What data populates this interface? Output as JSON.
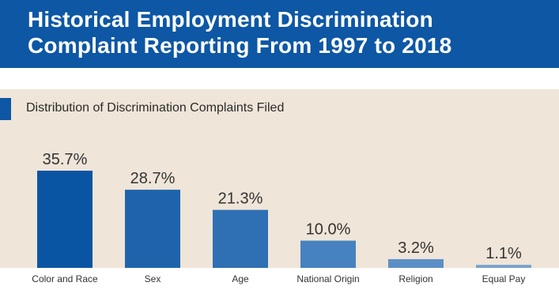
{
  "header": {
    "title_line1": "Historical Employment Discrimination",
    "title_line2": "Complaint Reporting From 1997 to 2018"
  },
  "colors": {
    "header_bg": "#0d57a5",
    "panel_bg": "#efe5d8",
    "bar_colors": [
      "#0a55a3",
      "#1e64ad",
      "#2f6fb4",
      "#4682bf",
      "#5a90c6",
      "#76a3cf"
    ]
  },
  "chart_data": {
    "type": "bar",
    "title": "Distribution of Discrimination Complaints Filed",
    "categories": [
      "Color and Race",
      "Sex",
      "Age",
      "National Origin",
      "Religion",
      "Equal Pay"
    ],
    "values": [
      35.7,
      28.7,
      21.3,
      10.0,
      3.2,
      1.1
    ],
    "data_labels": [
      "35.7%",
      "28.7%",
      "21.3%",
      "10.0%",
      "3.2%",
      "1.1%"
    ],
    "ylim": [
      0,
      35.7
    ],
    "grid": false,
    "legend": "none",
    "xlabel": "",
    "ylabel": ""
  }
}
